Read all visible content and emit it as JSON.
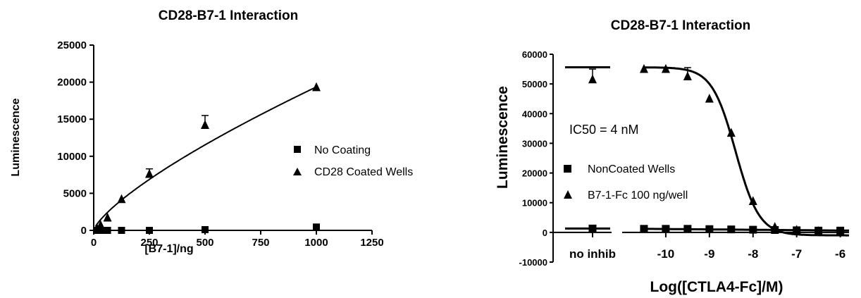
{
  "chart_data": [
    {
      "type": "scatter",
      "title": "CD28-B7-1 Interaction",
      "xlabel": "[B7-1]/ng",
      "ylabel": "Luminescence",
      "xlim": [
        0,
        1250
      ],
      "ylim": [
        0,
        25000
      ],
      "xticks": [
        0,
        250,
        500,
        750,
        1000,
        1250
      ],
      "yticks": [
        0,
        5000,
        10000,
        15000,
        20000,
        25000
      ],
      "legend_position": "right",
      "series": [
        {
          "name": "No Coating",
          "marker": "square",
          "x": [
            15,
            31,
            62,
            125,
            250,
            500,
            1000
          ],
          "y": [
            0,
            0,
            0,
            0,
            0,
            100,
            450
          ],
          "err": [
            0,
            0,
            0,
            0,
            0,
            0,
            0
          ]
        },
        {
          "name": "CD28 Coated Wells",
          "marker": "triangle",
          "x": [
            15,
            31,
            62,
            125,
            250,
            500,
            1000
          ],
          "y": [
            250,
            700,
            1700,
            4200,
            7600,
            14200,
            19300
          ],
          "err": [
            0,
            0,
            0,
            0,
            700,
            1300,
            0
          ]
        }
      ],
      "fit_curve": {
        "series": "CD28 Coated Wells",
        "model": "power",
        "a": 111.5,
        "b": 0.7465
      }
    },
    {
      "type": "scatter",
      "title": "CD28-B7-1 Interaction",
      "xlabel": "Log([CTLA4-Fc]/M)",
      "ylabel": "Luminescence",
      "xlim": [
        -11,
        -5.8
      ],
      "ylim": [
        -10000,
        60000
      ],
      "xticks": [
        -10,
        -9,
        -8,
        -7,
        -6
      ],
      "xtick_labels": [
        "-10",
        "-9",
        "-8",
        "-7",
        "-6"
      ],
      "yticks": [
        -10000,
        0,
        10000,
        20000,
        30000,
        40000,
        50000,
        60000
      ],
      "no_inhibitor_label": "no inhib",
      "annotation": "IC50 = 4 nM",
      "legend_position": "center-left",
      "series": [
        {
          "name": "NonCoated Wells",
          "marker": "square",
          "x": [
            -10.5,
            -10,
            -9.5,
            -9,
            -8.5,
            -8,
            -7.5,
            -7,
            -6.5,
            -6
          ],
          "y": [
            1200,
            1200,
            1200,
            1100,
            1000,
            900,
            800,
            700,
            600,
            600
          ],
          "no_inhib_y": 1300,
          "err": [
            0,
            0,
            0,
            0,
            0,
            0,
            0,
            0,
            0,
            0
          ]
        },
        {
          "name": "B7-1-Fc 100 ng/well",
          "marker": "triangle",
          "x": [
            -10.5,
            -10,
            -9.5,
            -9,
            -8.5,
            -8,
            -7.5,
            -7,
            -6.5,
            -6
          ],
          "y": [
            55000,
            55000,
            52500,
            45000,
            33500,
            10500,
            1800,
            800,
            400,
            200
          ],
          "no_inhib_y": 51500,
          "no_inhib_err": 3500,
          "err": [
            0,
            0,
            3000,
            0,
            0,
            0,
            0,
            0,
            0,
            0
          ]
        }
      ],
      "fit_curve": {
        "series": "B7-1-Fc 100 ng/well",
        "model": "4PL",
        "top": 55600,
        "bottom": -1000,
        "log_ic50": -8.4,
        "hill": 1.6
      }
    }
  ]
}
